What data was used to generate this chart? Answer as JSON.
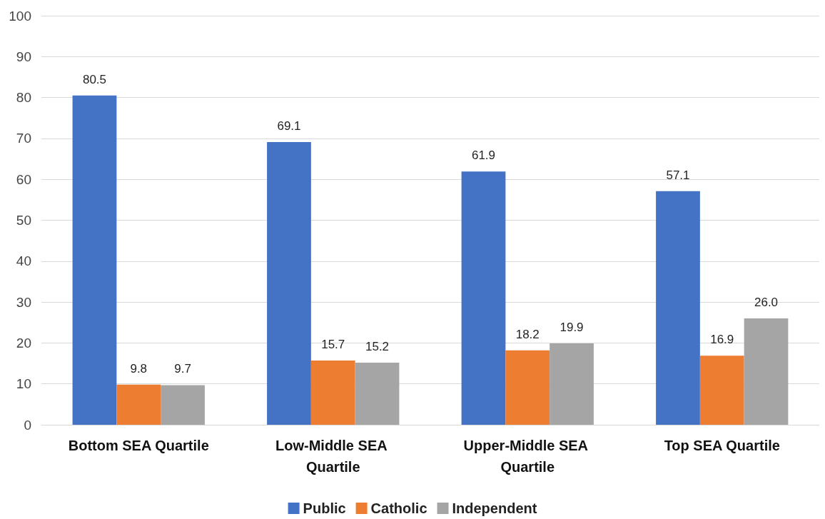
{
  "chart_data": {
    "type": "bar",
    "categories": [
      "Bottom SEA Quartile",
      "Low-Middle SEA Quartile",
      "Upper-Middle SEA Quartile",
      "Top SEA Quartile"
    ],
    "series": [
      {
        "name": "Public",
        "color": "#4472c4",
        "values": [
          80.5,
          69.1,
          61.9,
          57.1
        ],
        "value_labels": [
          "80.5",
          "69.1",
          "61.9",
          "57.1"
        ]
      },
      {
        "name": "Catholic",
        "color": "#ed7d31",
        "values": [
          9.8,
          15.7,
          18.2,
          16.9
        ],
        "value_labels": [
          "9.8",
          "15.7",
          "18.2",
          "16.9"
        ]
      },
      {
        "name": "Independent",
        "color": "#a5a5a5",
        "values": [
          9.7,
          15.2,
          19.9,
          26.0
        ],
        "value_labels": [
          "9.7",
          "15.2",
          "19.9",
          "26.0"
        ]
      }
    ],
    "ylim": [
      0,
      100
    ],
    "yticks": [
      0,
      10,
      20,
      30,
      40,
      50,
      60,
      70,
      80,
      90,
      100
    ],
    "grid": "y",
    "legend": "bottom"
  }
}
